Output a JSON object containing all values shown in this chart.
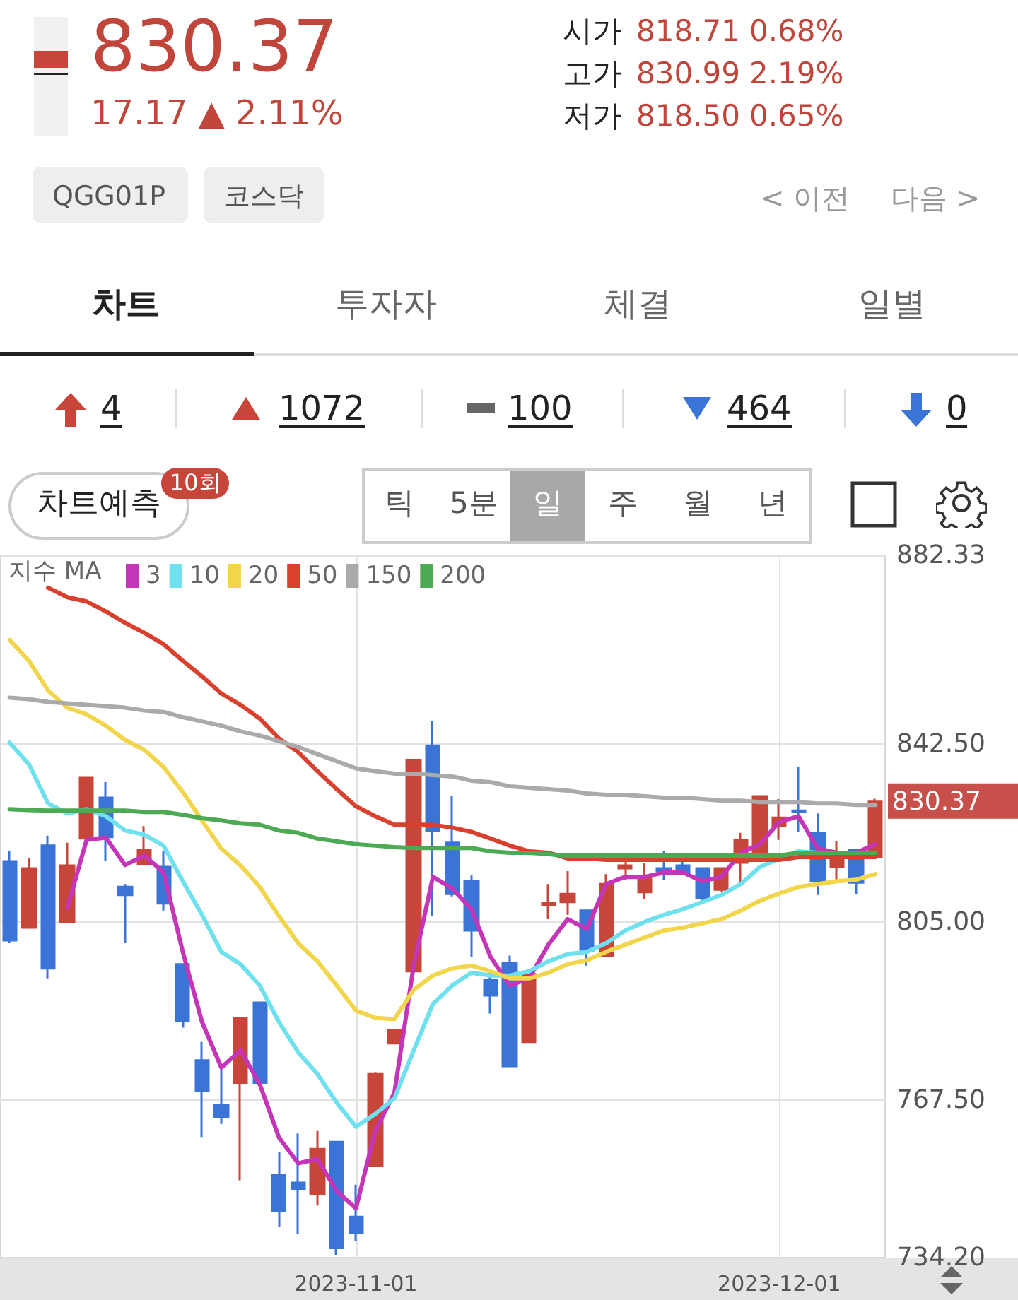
{
  "chart_data": {
    "type": "candlestick",
    "legend_title": "지수 MA",
    "legend": "top left",
    "grid": true,
    "annotations": [
      "830.37",
      "17.17 ▲ 2.11%",
      "시가",
      "818.71",
      "0.68%",
      "고가",
      "830.99",
      "2.19%",
      "저가",
      "818.50",
      "0.65%",
      "QGG01P",
      "코스닥",
      "< 이전",
      "다음 >",
      "차트",
      "투자자",
      "체결",
      "일별",
      "4",
      "1072",
      "100",
      "464",
      "0",
      "차트예측",
      "10회",
      "틱",
      "5분",
      "일",
      "주",
      "월",
      "년",
      "830.37"
    ],
    "categories": [
      null,
      null,
      null,
      null,
      null,
      null,
      null,
      null,
      null,
      null,
      null,
      null,
      null,
      null,
      null,
      null,
      null,
      null,
      "2023-11-01",
      null,
      null,
      null,
      null,
      null,
      null,
      null,
      null,
      null,
      null,
      null,
      null,
      null,
      null,
      null,
      null,
      null,
      null,
      null,
      null,
      null,
      "2023-12-01",
      null,
      null,
      null,
      null,
      null
    ],
    "ylim": [
      734.2,
      882.33
    ],
    "yticks": [
      {
        "value": 734.2,
        "label": "734.20"
      },
      {
        "value": 767.5,
        "label": "767.50"
      },
      {
        "value": 805,
        "label": "805.00"
      },
      {
        "value": 842.5,
        "label": "842.50"
      },
      882.33
    ],
    "ohlc": [
      [
        817.8,
        819.9,
        800.5,
        801.1
      ],
      [
        803.8,
        818.4,
        803.8,
        816.3
      ],
      [
        821.1,
        823.2,
        793.1,
        795.2
      ],
      [
        805.0,
        821.7,
        805.0,
        816.9
      ],
      [
        822.6,
        835.6,
        822.6,
        835.4
      ],
      [
        831.2,
        834.5,
        817.8,
        822.9
      ],
      [
        812.4,
        813.0,
        800.5,
        810.7
      ],
      [
        817.2,
        825.2,
        817.2,
        820.2
      ],
      [
        816.6,
        819.9,
        807.4,
        808.9
      ],
      [
        796.1,
        796.1,
        782.7,
        784.2
      ],
      [
        775.8,
        779.7,
        759.5,
        769.3
      ],
      [
        766.3,
        773.8,
        762.4,
        763.9
      ],
      [
        771.1,
        784.8,
        750.5,
        784.8
      ],
      [
        788.0,
        788.0,
        771.1,
        771.1
      ],
      [
        751.7,
        756.5,
        740.7,
        744.0
      ],
      [
        750.0,
        760.4,
        739.2,
        748.7
      ],
      [
        747.6,
        760.9,
        745.2,
        757.1
      ],
      [
        758.6,
        758.6,
        734.8,
        736.2
      ],
      [
        742.8,
        749.6,
        737.7,
        739.5
      ],
      [
        753.5,
        773.2,
        753.5,
        772.9
      ],
      [
        779.4,
        782.3,
        779.4,
        782.1
      ],
      [
        794.6,
        839.2,
        794.6,
        839.2
      ],
      [
        842.2,
        847.3,
        806.2,
        824.3
      ],
      [
        821.7,
        831.5,
        810.4,
        810.9
      ],
      [
        813.6,
        814.8,
        797.6,
        803.2
      ],
      [
        792.8,
        794.3,
        785.7,
        789.5
      ],
      [
        796.4,
        797.9,
        774.6,
        774.6
      ],
      [
        779.7,
        794.9,
        779.7,
        794.0
      ],
      [
        808.6,
        813.0,
        805.6,
        809.1
      ],
      [
        809.2,
        815.7,
        806.5,
        810.9
      ],
      [
        807.4,
        807.4,
        795.8,
        799.0
      ],
      [
        797.9,
        815.1,
        797.9,
        813.0
      ],
      [
        816.3,
        819.6,
        813.9,
        816.9
      ],
      [
        811.3,
        817.5,
        809.8,
        814.5
      ],
      [
        816.3,
        819.9,
        813.9,
        815.7
      ],
      [
        816.9,
        818.7,
        815.1,
        815.1
      ],
      [
        816.3,
        816.3,
        809.2,
        810.1
      ],
      [
        811.8,
        816.3,
        811.3,
        816.3
      ],
      [
        817.5,
        823.8,
        813.0,
        822.3
      ],
      [
        819.6,
        831.5,
        819.6,
        831.5
      ],
      [
        825.2,
        830.9,
        822.3,
        827.0
      ],
      [
        828.5,
        837.7,
        824.0,
        828.2
      ],
      [
        823.8,
        827.9,
        810.7,
        813.6
      ],
      [
        816.6,
        822.0,
        813.9,
        819.6
      ],
      [
        820.2,
        820.2,
        810.9,
        813.3
      ],
      [
        818.71,
        830.99,
        818.5,
        830.37
      ]
    ],
    "colors": [
      "#3a74d6",
      "#c8453a",
      "#3a74d6",
      "#c8453a",
      "#c8453a",
      "#3a74d6",
      "#3a74d6",
      "#c8453a",
      "#3a74d6",
      "#3a74d6",
      "#3a74d6",
      "#3a74d6",
      "#c8453a",
      "#3a74d6",
      "#3a74d6",
      "#3a74d6",
      "#c8453a",
      "#3a74d6",
      "#3a74d6",
      "#c8453a",
      "#c8453a",
      "#c8453a",
      "#3a74d6",
      "#3a74d6",
      "#3a74d6",
      "#3a74d6",
      "#3a74d6",
      "#c8453a",
      "#c8453a",
      "#c8453a",
      "#3a74d6",
      "#c8453a",
      "#c8453a",
      "#c8453a",
      "#3a74d6",
      "#3a74d6",
      "#3a74d6",
      "#c8453a",
      "#c8453a",
      "#c8453a",
      "#c8453a",
      "#3a74d6",
      "#3a74d6",
      "#c8453a",
      "#3a74d6",
      "#c8453a"
    ],
    "series": [
      {
        "type": "line",
        "name": "3",
        "color": "#c535b8",
        "values": [
          null,
          null,
          null,
          808,
          822.3,
          822.8,
          817.0,
          819.0,
          815.5,
          798.7,
          783.9,
          774.3,
          777.9,
          770.8,
          759.5,
          754.1,
          755.0,
          748.2,
          744.6,
          760.9,
          769.0,
          795.8,
          814.5,
          812.1,
          807.7,
          797.6,
          791.6,
          793.1,
          800.2,
          805.6,
          803.5,
          813.0,
          814.5,
          814.5,
          815.4,
          815.4,
          813.6,
          814.5,
          819.6,
          821.4,
          826.1,
          827.3,
          820.5,
          819.6,
          819.6,
          821.4
        ]
      },
      {
        "type": "line",
        "name": "10",
        "color": "#6ee0ee",
        "values": [
          842.8,
          838.3,
          830.0,
          827.9,
          828.8,
          827.3,
          824.3,
          823.4,
          821.1,
          813.6,
          806.5,
          798.7,
          796.1,
          791.6,
          783.9,
          777.5,
          772.9,
          766.9,
          761.8,
          764.5,
          767.8,
          777.9,
          787.7,
          791.6,
          794.3,
          793.7,
          793.7,
          794.6,
          796.7,
          798.2,
          798.7,
          800.5,
          803.2,
          805.0,
          806.5,
          807.7,
          809.2,
          810.7,
          813.0,
          816.6,
          818.4,
          819.9,
          819.6,
          null,
          null,
          null
        ]
      },
      {
        "type": "line",
        "name": "20",
        "color": "#f1d54a",
        "values": [
          864.5,
          860.1,
          853.8,
          850.2,
          848.8,
          846.4,
          843.4,
          841.3,
          837.7,
          832.4,
          826.4,
          820.5,
          816.9,
          812.4,
          806.2,
          800.5,
          796.7,
          791.6,
          786.3,
          784.8,
          784.5,
          790.7,
          793.7,
          795.2,
          795.8,
          794.6,
          793.1,
          793.1,
          794.3,
          796.1,
          796.9,
          798.7,
          800.2,
          801.7,
          803.2,
          803.8,
          804.7,
          805.6,
          807.4,
          809.5,
          811.0,
          812.4,
          813.0,
          813.6,
          813.9,
          815.1
        ]
      },
      {
        "type": "line",
        "name": "50",
        "color": "#d9402d",
        "values": [
          null,
          null,
          875.5,
          873.5,
          872.6,
          870.5,
          868.1,
          866.0,
          863.6,
          860.1,
          856.8,
          853.2,
          850.8,
          847.9,
          843.7,
          840.8,
          836.8,
          833.0,
          829.4,
          827.3,
          825.5,
          825.5,
          825.5,
          824.9,
          824.0,
          822.6,
          821.1,
          819.9,
          819.6,
          818.4,
          818.4,
          818.1,
          818.1,
          818.1,
          818.1,
          818.1,
          818.1,
          818.1,
          818.1,
          818.1,
          818.1,
          818.7,
          818.7,
          818.7,
          818.7,
          818.7
        ]
      },
      {
        "type": "line",
        "name": "150",
        "color": "#aaaaaa",
        "values": [
          852.3,
          852.0,
          851.4,
          851.1,
          850.8,
          850.5,
          850.2,
          849.6,
          849.3,
          848.2,
          847.3,
          846.4,
          845.2,
          844.3,
          843.1,
          841.9,
          840.4,
          838.9,
          837.4,
          836.8,
          836.3,
          836.3,
          836.0,
          835.7,
          834.8,
          834.5,
          833.6,
          833.3,
          833.0,
          832.7,
          832.1,
          831.8,
          831.8,
          831.5,
          831.2,
          831.2,
          830.9,
          830.6,
          830.6,
          830.3,
          830.3,
          830.3,
          830.0,
          830.0,
          829.7,
          829.7
        ]
      },
      {
        "type": "line",
        "name": "200",
        "color": "#4caa55",
        "values": [
          828.8,
          828.6,
          828.5,
          828.5,
          828.5,
          828.5,
          828.5,
          828.2,
          828.2,
          827.6,
          826.9,
          826.4,
          825.8,
          825.5,
          824.3,
          823.8,
          822.6,
          822.0,
          821.4,
          821.1,
          820.8,
          820.6,
          820.6,
          820.6,
          820.6,
          819.9,
          819.6,
          819.6,
          819.3,
          819.0,
          819.0,
          819.0,
          819.0,
          819.0,
          819.0,
          819.0,
          819.0,
          819.0,
          819.0,
          819.0,
          819.0,
          819.6,
          819.6,
          819.6,
          819.6,
          819.6
        ]
      }
    ]
  }
}
